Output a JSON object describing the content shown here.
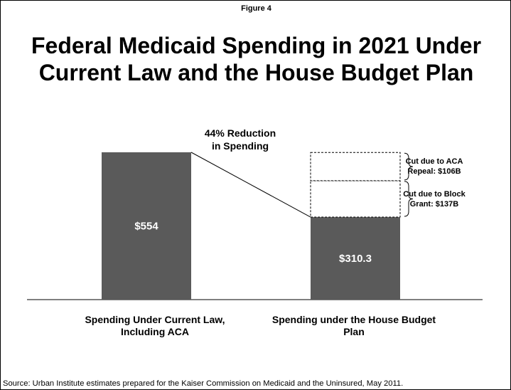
{
  "figure_label": "Figure 4",
  "title_line1": "Federal Medicaid Spending in 2021 Under",
  "title_line2": "Current Law and the House Budget Plan",
  "source": "Source: Urban Institute estimates prepared for the Kaiser Commission on Medicaid and the Uninsured, May 2011.",
  "colors": {
    "bar": "#5a5a5a",
    "text_on_bar": "#ffffff",
    "outline": "#000000"
  },
  "chart_data": {
    "type": "bar",
    "stacked": true,
    "categories": [
      "Spending Under Current Law, Including ACA",
      "Spending under the House Budget Plan"
    ],
    "category_label_lines": [
      [
        "Spending Under Current Law,",
        "Including ACA"
      ],
      [
        "Spending under the House Budget",
        "Plan"
      ]
    ],
    "bars": [
      {
        "segments": [
          {
            "value": 554,
            "label": "$554",
            "style": "solid"
          }
        ]
      },
      {
        "segments": [
          {
            "value": 310.3,
            "label": "$310.3",
            "style": "solid"
          },
          {
            "value": 137,
            "label": "",
            "style": "dashed"
          },
          {
            "value": 106,
            "label": "",
            "style": "dashed"
          }
        ]
      }
    ],
    "annotations": [
      {
        "label_lines": [
          "Cut due to Block",
          "Grant: $137B"
        ],
        "value": 137
      },
      {
        "label_lines": [
          "Cut due to ACA",
          "Repeal: $106B"
        ],
        "value": 106
      }
    ],
    "reduction_label_lines": [
      "44% Reduction",
      "in Spending"
    ],
    "ylim": [
      0,
      554
    ],
    "axes_visible": false
  }
}
